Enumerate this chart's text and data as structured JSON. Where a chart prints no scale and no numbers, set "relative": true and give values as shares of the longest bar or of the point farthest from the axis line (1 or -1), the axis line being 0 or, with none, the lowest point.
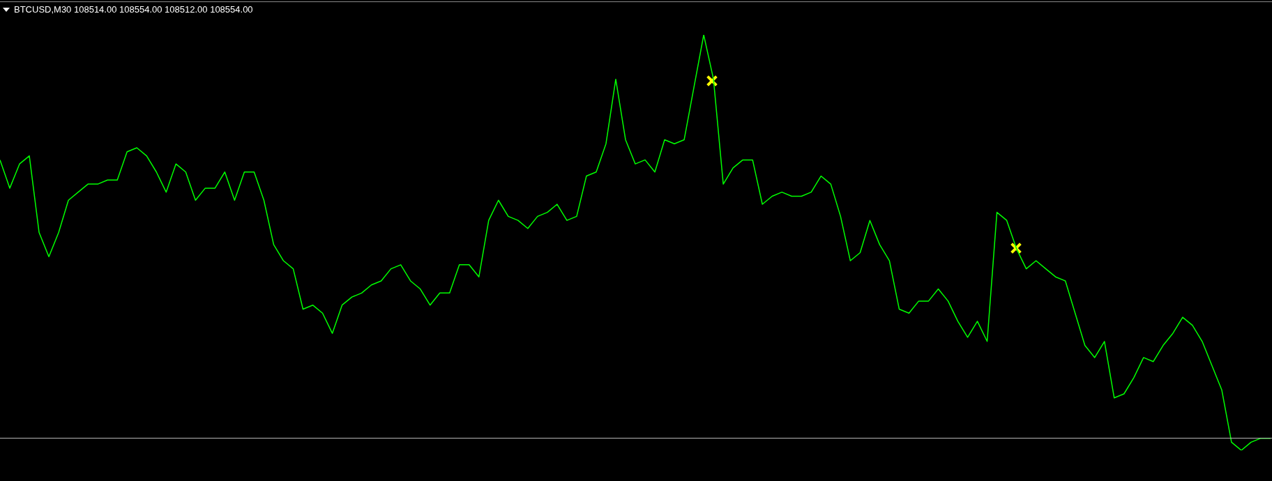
{
  "chart_data": {
    "type": "line",
    "title": "BTCUSD,M30  108514.00 108554.00 108512.00 108554.00",
    "relative": true,
    "legend": false,
    "tick_labels": false,
    "categories": [
      null,
      null,
      null,
      null,
      null,
      null,
      null,
      null,
      null,
      null,
      null,
      null,
      null,
      null,
      null,
      null,
      null,
      null,
      null,
      null,
      null,
      null,
      null,
      null,
      null,
      null,
      null,
      null,
      null,
      null,
      null,
      null,
      null,
      null,
      null,
      null,
      null,
      null,
      null,
      null,
      null,
      null,
      null,
      null,
      null,
      null,
      null,
      null,
      null,
      null,
      null,
      null,
      null,
      null,
      null,
      null,
      null,
      null,
      null,
      null,
      null,
      null,
      null,
      null,
      null,
      null,
      null,
      null,
      null,
      null,
      null,
      null,
      null,
      null,
      null,
      null,
      null,
      null,
      null,
      null,
      null,
      null,
      null,
      null,
      null,
      null,
      null,
      null,
      null,
      null,
      null,
      null,
      null,
      null,
      null,
      null,
      null,
      null,
      null,
      null,
      null,
      null,
      null,
      null,
      null,
      null,
      null,
      null,
      null,
      null,
      null,
      null,
      null,
      null,
      null,
      null,
      null,
      null,
      null,
      null,
      null,
      null,
      null,
      null,
      null,
      null,
      null,
      null,
      null,
      null,
      null
    ],
    "series": [
      {
        "type": "line",
        "color": "#00ff00",
        "values": [
          0.69,
          0.62,
          0.68,
          0.7,
          0.51,
          0.45,
          0.51,
          0.59,
          0.61,
          0.63,
          0.63,
          0.64,
          0.64,
          0.71,
          0.72,
          0.7,
          0.66,
          0.61,
          0.68,
          0.66,
          0.59,
          0.62,
          0.62,
          0.66,
          0.59,
          0.66,
          0.66,
          0.59,
          0.48,
          0.44,
          0.42,
          0.32,
          0.33,
          0.31,
          0.26,
          0.33,
          0.35,
          0.36,
          0.38,
          0.39,
          0.42,
          0.43,
          0.39,
          0.37,
          0.33,
          0.36,
          0.36,
          0.43,
          0.43,
          0.4,
          0.54,
          0.59,
          0.55,
          0.54,
          0.52,
          0.55,
          0.56,
          0.58,
          0.54,
          0.55,
          0.65,
          0.66,
          0.73,
          0.89,
          0.74,
          0.68,
          0.69,
          0.66,
          0.74,
          0.73,
          0.74,
          0.87,
          1.0,
          0.89,
          0.63,
          0.67,
          0.69,
          0.69,
          0.58,
          0.6,
          0.61,
          0.6,
          0.6,
          0.61,
          0.65,
          0.63,
          0.55,
          0.44,
          0.46,
          0.54,
          0.48,
          0.44,
          0.32,
          0.31,
          0.34,
          0.34,
          0.37,
          0.34,
          0.29,
          0.25,
          0.29,
          0.24,
          0.56,
          0.54,
          0.47,
          0.42,
          0.44,
          0.42,
          0.4,
          0.39,
          0.31,
          0.23,
          0.2,
          0.24,
          0.1,
          0.11,
          0.15,
          0.2,
          0.19,
          0.23,
          0.26,
          0.3,
          0.28,
          0.24,
          0.18,
          0.12,
          -0.01,
          -0.03,
          -0.01,
          0,
          0
        ]
      }
    ]
  }
}
